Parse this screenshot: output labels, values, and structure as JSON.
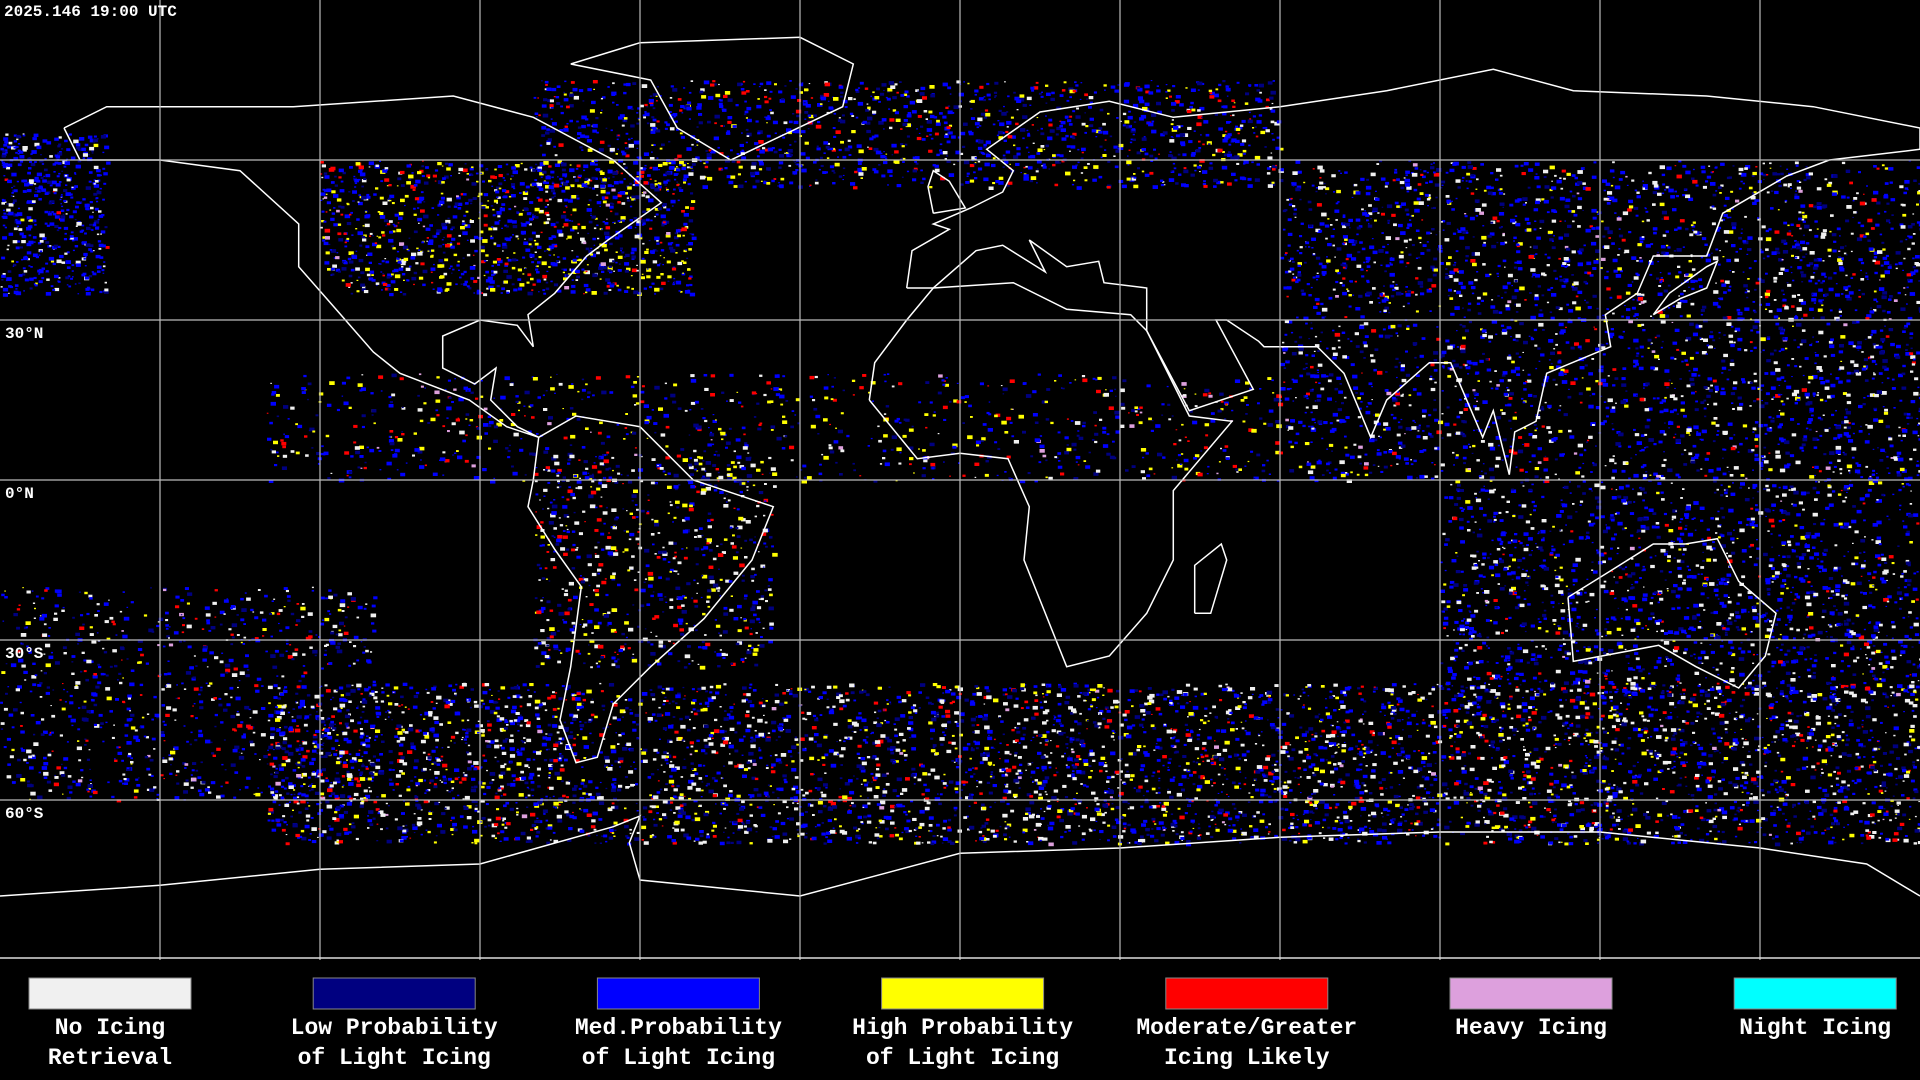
{
  "timestamp": "2025.146 19:00 UTC",
  "latitude_labels": [
    "30°N",
    "0°N",
    "30°S",
    "60°S"
  ],
  "legend": [
    {
      "label": [
        "No Icing",
        "Retrieval"
      ],
      "color": "#f0f0f0"
    },
    {
      "label": [
        "Low Probability",
        "of Light Icing"
      ],
      "color": "#000080"
    },
    {
      "label": [
        "Med.Probability",
        "of Light Icing"
      ],
      "color": "#0000ff"
    },
    {
      "label": [
        "High Probability",
        "of Light Icing"
      ],
      "color": "#ffff00"
    },
    {
      "label": [
        "Moderate/Greater",
        "Icing Likely"
      ],
      "color": "#ff0000"
    },
    {
      "label": [
        "Heavy Icing"
      ],
      "color": "#dda0dd"
    },
    {
      "label": [
        "Night Icing"
      ],
      "color": "#00ffff"
    }
  ]
}
